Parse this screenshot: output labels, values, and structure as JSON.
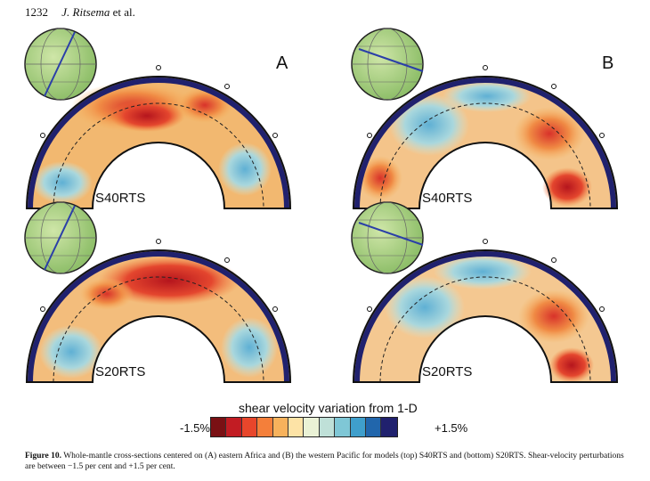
{
  "header": {
    "page_number": "1232",
    "authors": "J. Ritsema",
    "suffix": "et al."
  },
  "panels": [
    {
      "letter": "A",
      "model": "S40RTS"
    },
    {
      "letter": "B",
      "model": "S40RTS"
    },
    {
      "letter": "",
      "model": "S20RTS"
    },
    {
      "letter": "",
      "model": "S20RTS"
    }
  ],
  "colorscale": {
    "title": "shear velocity variation from 1-D",
    "min_label": "-1.5%",
    "max_label": "+1.5%",
    "colors": [
      "#7a1014",
      "#c21c23",
      "#e8462b",
      "#f47f3a",
      "#f7b25c",
      "#fde3a6",
      "#eaf2d6",
      "#bfe0d8",
      "#7fc7d6",
      "#3f9fcc",
      "#2166ac",
      "#20216e"
    ]
  },
  "caption": {
    "label": "Figure 10.",
    "text": "Whole-mantle cross-sections centered on (A) eastern Africa and (B) the western Pacific for models (top) S40RTS and (bottom) S20RTS. Shear-velocity perturbations are between −1.5 per cent and +1.5 per cent."
  }
}
